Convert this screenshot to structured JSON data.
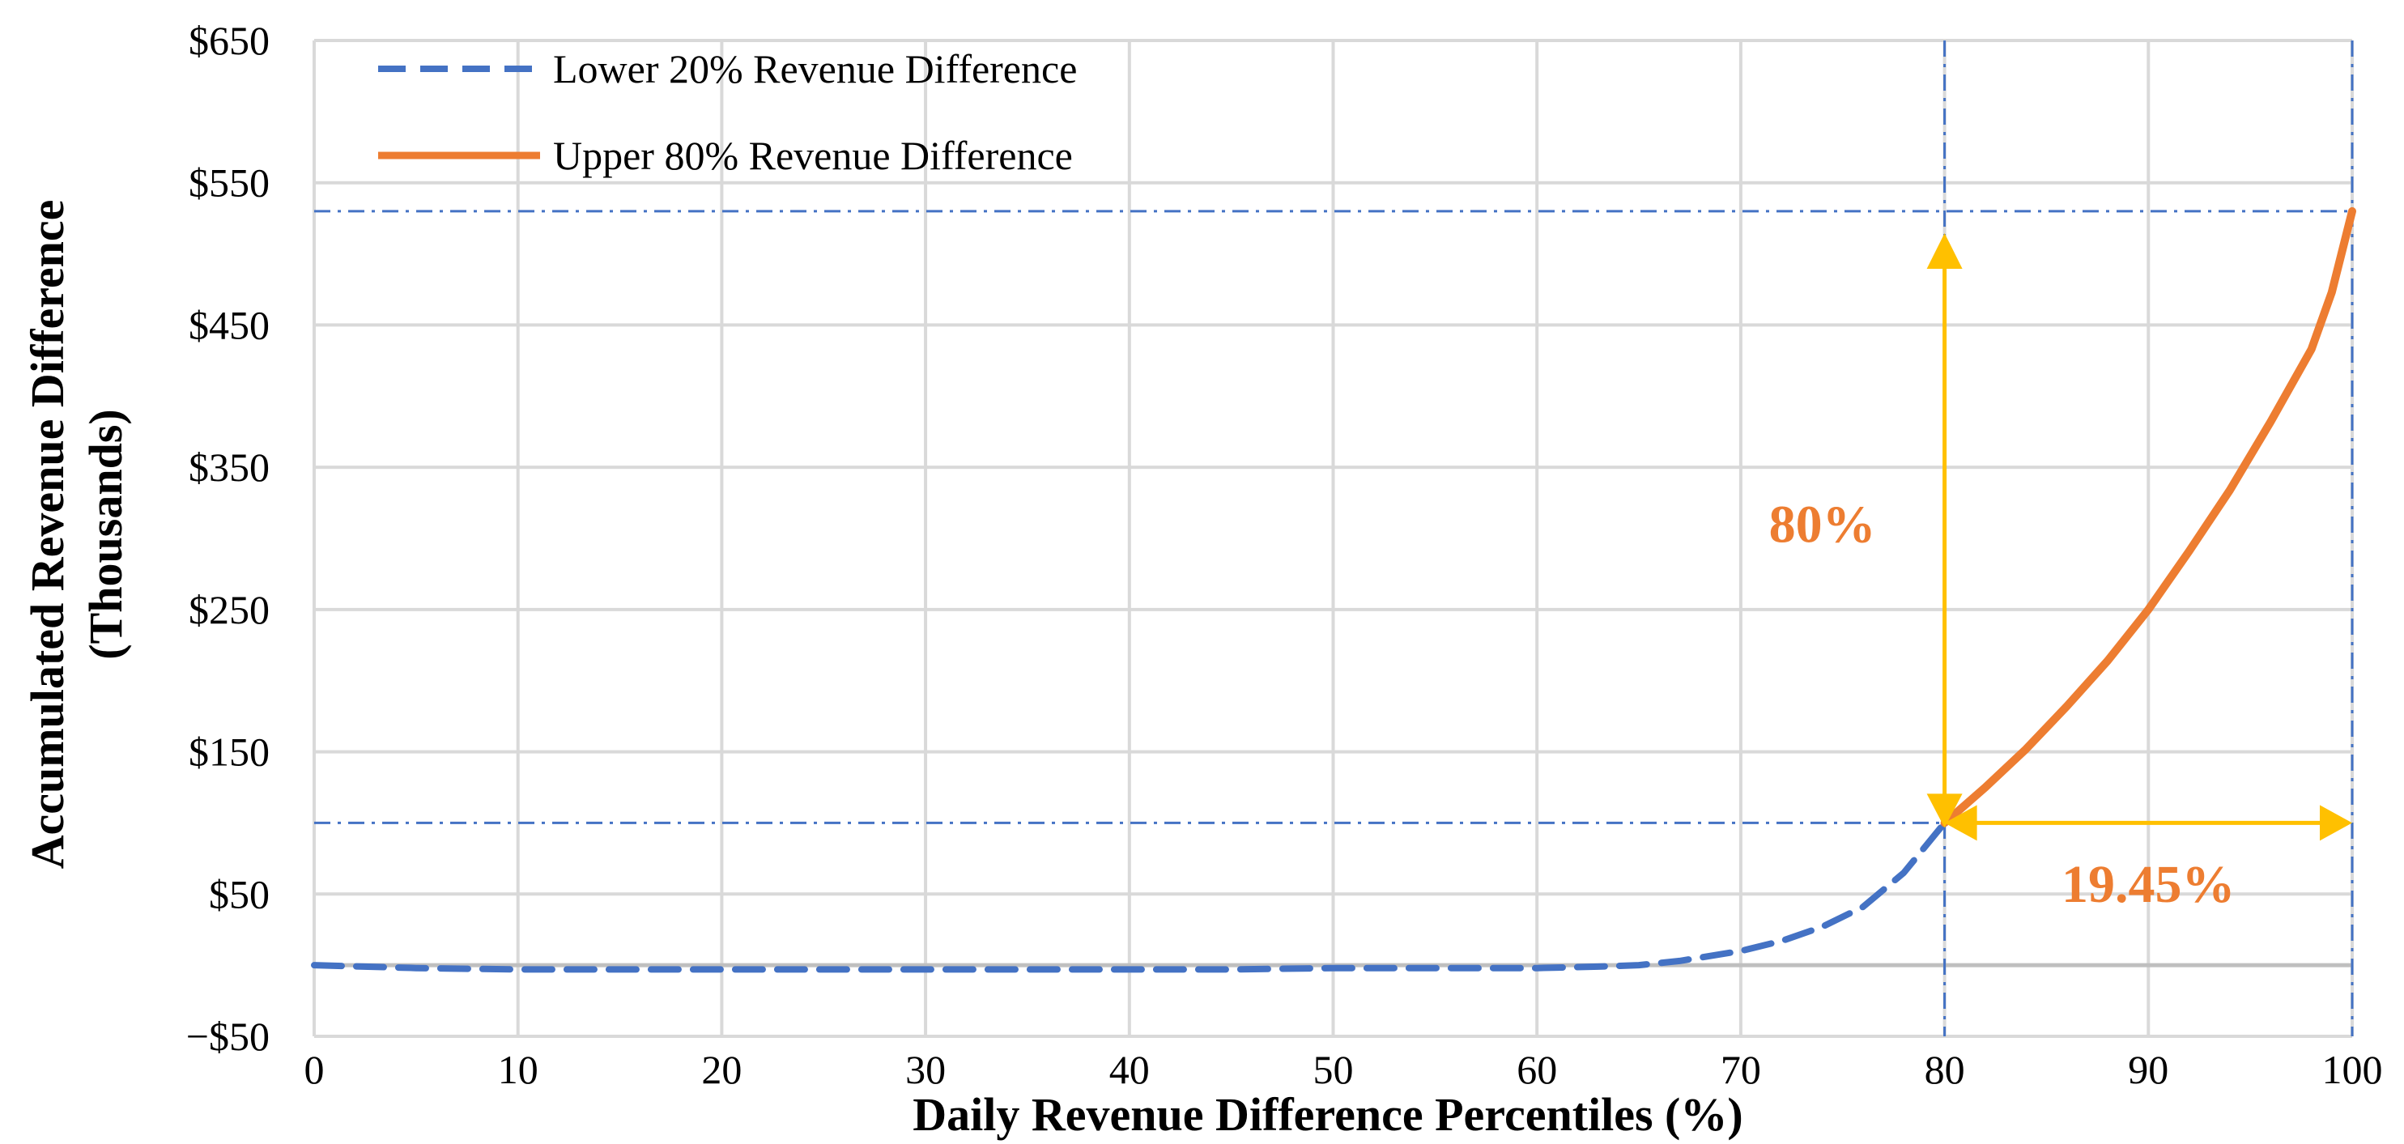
{
  "chart_data": {
    "type": "line",
    "title": "",
    "xlabel": "Daily Revenue Difference Percentiles (%)",
    "ylabel": [
      "Accumulated Revenue Difference",
      "(Thousands)"
    ],
    "xlim": [
      0,
      100
    ],
    "ylim": [
      -50,
      650
    ],
    "x_ticks": [
      0,
      10,
      20,
      30,
      40,
      50,
      60,
      70,
      80,
      90,
      100
    ],
    "y_ticks": [
      -50,
      50,
      150,
      250,
      350,
      450,
      550,
      650
    ],
    "y_tick_labels": [
      "−$50",
      "$50",
      "$150",
      "$250",
      "$350",
      "$450",
      "$550",
      "$650"
    ],
    "grid": true,
    "legend_position": "top-left",
    "series": [
      {
        "name": "Lower 20% Revenue Difference",
        "style": "dashed",
        "color": "#4472C4",
        "x": [
          0,
          5,
          10,
          15,
          20,
          25,
          30,
          35,
          40,
          45,
          50,
          55,
          60,
          63,
          65,
          67,
          70,
          72,
          74,
          76,
          78,
          80
        ],
        "y": [
          0,
          -2,
          -3,
          -3,
          -3,
          -3,
          -3,
          -3,
          -3,
          -3,
          -2,
          -2,
          -2,
          -1,
          0,
          3,
          10,
          17,
          27,
          41,
          65,
          100
        ]
      },
      {
        "name": "Upper 80% Revenue Difference",
        "style": "solid",
        "color": "#ED7D31",
        "x": [
          80,
          82,
          84,
          86,
          88,
          90,
          92,
          94,
          96,
          98,
          99,
          100
        ],
        "y": [
          100,
          125,
          152,
          182,
          214,
          250,
          291,
          334,
          382,
          433,
          473,
          530
        ]
      }
    ],
    "reference_lines": [
      {
        "orientation": "horizontal",
        "value": 530,
        "color": "#4472C4",
        "style": "dash-dot"
      },
      {
        "orientation": "horizontal",
        "value": 100,
        "color": "#4472C4",
        "style": "dash-dot"
      },
      {
        "orientation": "vertical",
        "value": 80,
        "color": "#4472C4",
        "style": "dash-dot"
      },
      {
        "orientation": "vertical",
        "value": 100,
        "color": "#4472C4",
        "style": "dash-dot"
      }
    ],
    "annotations": [
      {
        "name": "vertical-arrow",
        "x": 80,
        "y_from": 100,
        "y_to": 510,
        "color": "#FFC000"
      },
      {
        "name": "horizontal-arrow",
        "y": 100,
        "x_from": 80,
        "x_to": 100,
        "color": "#FFC000"
      },
      {
        "name": "label-80",
        "text": "80%",
        "x": 74,
        "y": 310,
        "color": "#ED7D31"
      },
      {
        "name": "label-1945",
        "text": "19.45%",
        "x": 90,
        "y": 57,
        "color": "#ED7D31"
      }
    ]
  }
}
